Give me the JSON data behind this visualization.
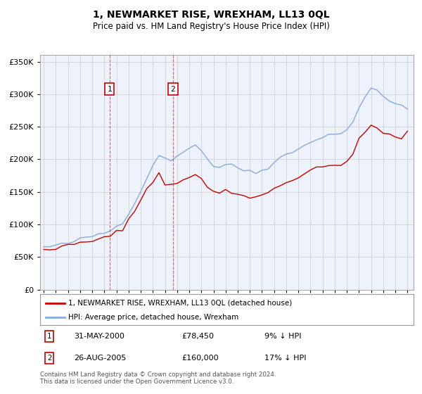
{
  "title": "1, NEWMARKET RISE, WREXHAM, LL13 0QL",
  "subtitle": "Price paid vs. HM Land Registry's House Price Index (HPI)",
  "legend_line1": "1, NEWMARKET RISE, WREXHAM, LL13 0QL (detached house)",
  "legend_line2": "HPI: Average price, detached house, Wrexham",
  "sale1_date": "31-MAY-2000",
  "sale1_price": "£78,450",
  "sale1_hpi": "9% ↓ HPI",
  "sale2_date": "26-AUG-2005",
  "sale2_price": "£160,000",
  "sale2_hpi": "17% ↓ HPI",
  "footer": "Contains HM Land Registry data © Crown copyright and database right 2024.\nThis data is licensed under the Open Government Licence v3.0.",
  "sale1_x": 2000.42,
  "sale2_x": 2005.66,
  "line_color_property": "#cc0000",
  "line_color_hpi": "#88aadd",
  "bg_color": "#eef2fa",
  "grid_color": "#cccccc",
  "box_color": "#cc0000",
  "ylim": [
    0,
    360000
  ],
  "xlim_start": 1994.7,
  "xlim_end": 2025.5,
  "hpi_years": [
    1995,
    1995.5,
    1996,
    1996.5,
    1997,
    1997.5,
    1998,
    1998.5,
    1999,
    1999.5,
    2000,
    2000.5,
    2001,
    2001.5,
    2002,
    2002.5,
    2003,
    2003.5,
    2004,
    2004.5,
    2005,
    2005.5,
    2006,
    2006.5,
    2007,
    2007.5,
    2008,
    2008.5,
    2009,
    2009.5,
    2010,
    2010.5,
    2011,
    2011.5,
    2012,
    2012.5,
    2013,
    2013.5,
    2014,
    2014.5,
    2015,
    2015.5,
    2016,
    2016.5,
    2017,
    2017.5,
    2018,
    2018.5,
    2019,
    2019.5,
    2020,
    2020.5,
    2021,
    2021.5,
    2022,
    2022.5,
    2023,
    2023.5,
    2024,
    2024.5,
    2025.0
  ],
  "hpi_values": [
    65000,
    66000,
    67500,
    69000,
    71000,
    74000,
    77000,
    79500,
    82000,
    85000,
    87000,
    91000,
    97000,
    104000,
    118000,
    133000,
    152000,
    170000,
    192000,
    208000,
    200000,
    198000,
    205000,
    213000,
    218000,
    222000,
    215000,
    200000,
    190000,
    188000,
    193000,
    190000,
    187000,
    184000,
    182000,
    180000,
    183000,
    188000,
    197000,
    203000,
    207000,
    210000,
    216000,
    222000,
    228000,
    231000,
    234000,
    237000,
    238000,
    242000,
    245000,
    258000,
    280000,
    295000,
    308000,
    305000,
    298000,
    290000,
    285000,
    282000,
    278000
  ],
  "prop_years": [
    1995,
    1995.5,
    1996,
    1996.5,
    1997,
    1997.5,
    1998,
    1998.5,
    1999,
    1999.5,
    2000,
    2000.5,
    2001,
    2001.5,
    2002,
    2002.5,
    2003,
    2003.5,
    2004,
    2004.5,
    2005,
    2005.5,
    2006,
    2006.5,
    2007,
    2007.5,
    2008,
    2008.5,
    2009,
    2009.5,
    2010,
    2010.5,
    2011,
    2011.5,
    2012,
    2012.5,
    2013,
    2013.5,
    2014,
    2014.5,
    2015,
    2015.5,
    2016,
    2016.5,
    2017,
    2017.5,
    2018,
    2018.5,
    2019,
    2019.5,
    2020,
    2020.5,
    2021,
    2021.5,
    2022,
    2022.5,
    2023,
    2023.5,
    2024,
    2024.5,
    2025.0
  ],
  "prop_values": [
    62000,
    63000,
    64000,
    65500,
    67000,
    69500,
    71000,
    72500,
    75000,
    77000,
    78450,
    82000,
    88000,
    95000,
    107000,
    120000,
    138000,
    155000,
    168000,
    180000,
    160000,
    159000,
    164000,
    170000,
    173000,
    175000,
    170000,
    158000,
    150000,
    148000,
    152000,
    149000,
    147000,
    145000,
    143000,
    142000,
    145000,
    149000,
    156000,
    162000,
    165000,
    168000,
    173000,
    178000,
    183000,
    185000,
    188000,
    190000,
    191000,
    194000,
    197000,
    208000,
    228000,
    242000,
    252000,
    248000,
    242000,
    237000,
    233000,
    230000,
    245000
  ]
}
